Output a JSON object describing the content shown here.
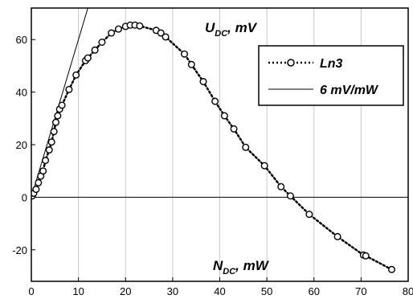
{
  "chart_data": {
    "type": "scatter",
    "x_axis_title": {
      "main": "N",
      "sub": "DC",
      "suffix": ", mW"
    },
    "y_axis_title": {
      "main": "U",
      "sub": "DC",
      "suffix": ", mV"
    },
    "xlim": [
      0,
      80
    ],
    "ylim": [
      -32,
      72
    ],
    "x_ticks": [
      0,
      10,
      20,
      30,
      40,
      50,
      60,
      70,
      80
    ],
    "y_ticks": [
      -20,
      0,
      20,
      40,
      60
    ],
    "grid": {
      "vertical": true,
      "horizontal": false,
      "zero_line": true
    },
    "legend_position": "top-right",
    "series": [
      {
        "name": "Ln3",
        "style": "dotted-line-with-circle-markers",
        "color": "#000000",
        "points": [
          [
            0.2,
            0.5
          ],
          [
            0.5,
            1.5
          ],
          [
            1.0,
            3.0
          ],
          [
            1.5,
            5.5
          ],
          [
            2.0,
            8.0
          ],
          [
            2.5,
            10.0
          ],
          [
            3.0,
            14.0
          ],
          [
            3.8,
            18.0
          ],
          [
            4.3,
            21.0
          ],
          [
            4.8,
            25.0
          ],
          [
            5.2,
            28.5
          ],
          [
            5.6,
            31.0
          ],
          [
            6.0,
            33.5
          ],
          [
            6.5,
            35.0
          ],
          [
            8.0,
            41.0
          ],
          [
            9.5,
            46.5
          ],
          [
            11.5,
            52.0
          ],
          [
            12.0,
            53.0
          ],
          [
            13.5,
            56.0
          ],
          [
            15.0,
            59.0
          ],
          [
            17.0,
            62.5
          ],
          [
            18.5,
            64.0
          ],
          [
            20.0,
            65.0
          ],
          [
            21.0,
            65.5
          ],
          [
            22.0,
            65.5
          ],
          [
            23.0,
            65.2
          ],
          [
            26.5,
            63.5
          ],
          [
            27.5,
            62.5
          ],
          [
            28.5,
            61.0
          ],
          [
            32.5,
            54.5
          ],
          [
            34.0,
            50.5
          ],
          [
            36.5,
            44.0
          ],
          [
            39.0,
            36.5
          ],
          [
            41.0,
            31.0
          ],
          [
            43.0,
            26.0
          ],
          [
            45.5,
            19.0
          ],
          [
            49.5,
            12.0
          ],
          [
            53.0,
            4.0
          ],
          [
            55.0,
            0.5
          ],
          [
            59.0,
            -6.5
          ],
          [
            65.0,
            -15.0
          ],
          [
            70.5,
            -22.0
          ],
          [
            71.0,
            -22.3
          ],
          [
            76.5,
            -27.5
          ]
        ]
      },
      {
        "name": "6 mV/mW",
        "style": "solid-line",
        "color": "#000000",
        "points": [
          [
            0,
            0
          ],
          [
            12.4,
            74.4
          ]
        ]
      }
    ]
  }
}
